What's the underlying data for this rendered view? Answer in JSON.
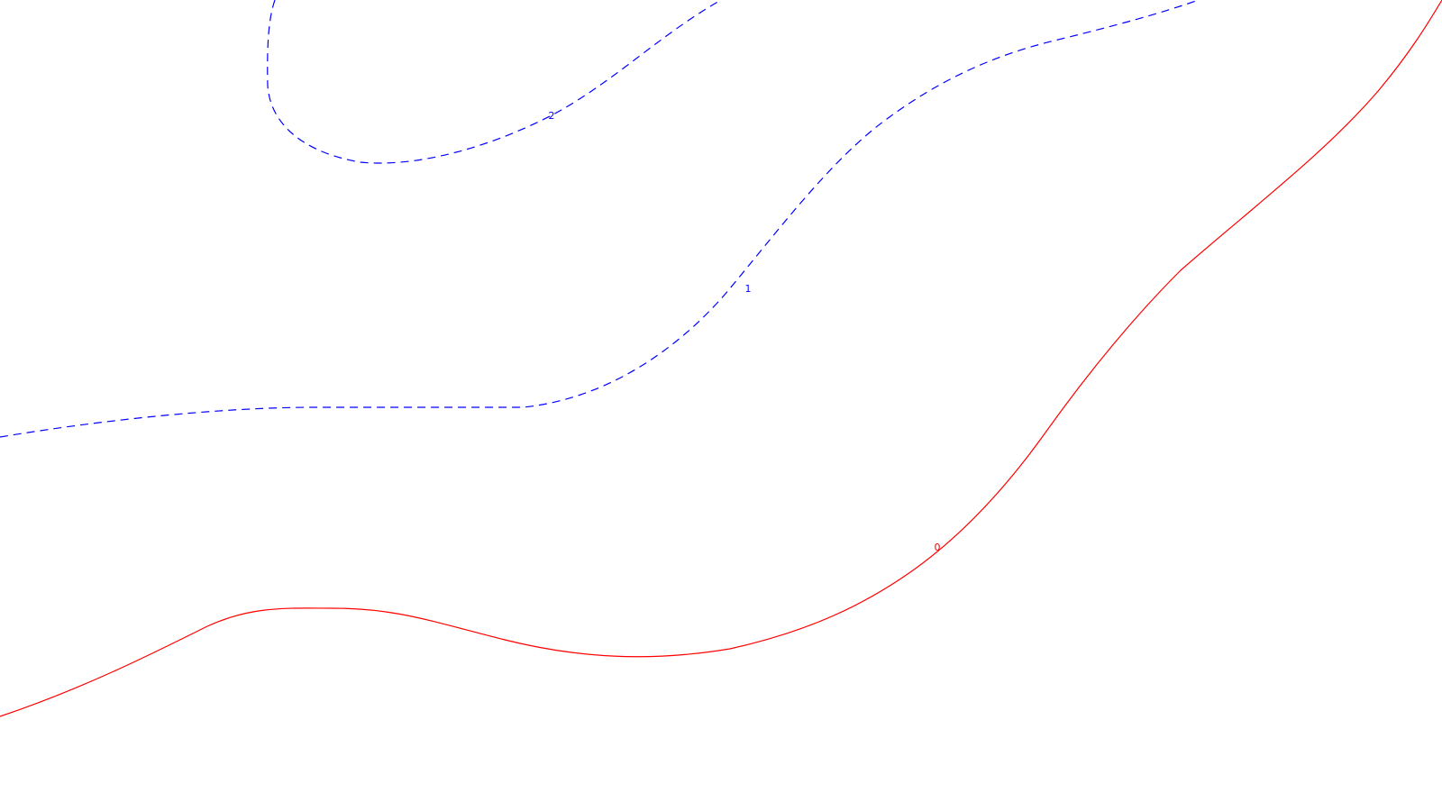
{
  "chart_data": {
    "type": "contour",
    "title": "",
    "xlabel": "",
    "ylabel": "",
    "grid": false,
    "axes_visible": false,
    "legend": "none",
    "levels": [
      {
        "level": 2,
        "label": "2",
        "color": "#0000ff",
        "style": "dashed"
      },
      {
        "level": 1,
        "label": "1",
        "color": "#0000ff",
        "style": "dashed"
      },
      {
        "level": 0,
        "label": "0",
        "color": "#ff0000",
        "style": "solid"
      }
    ]
  }
}
